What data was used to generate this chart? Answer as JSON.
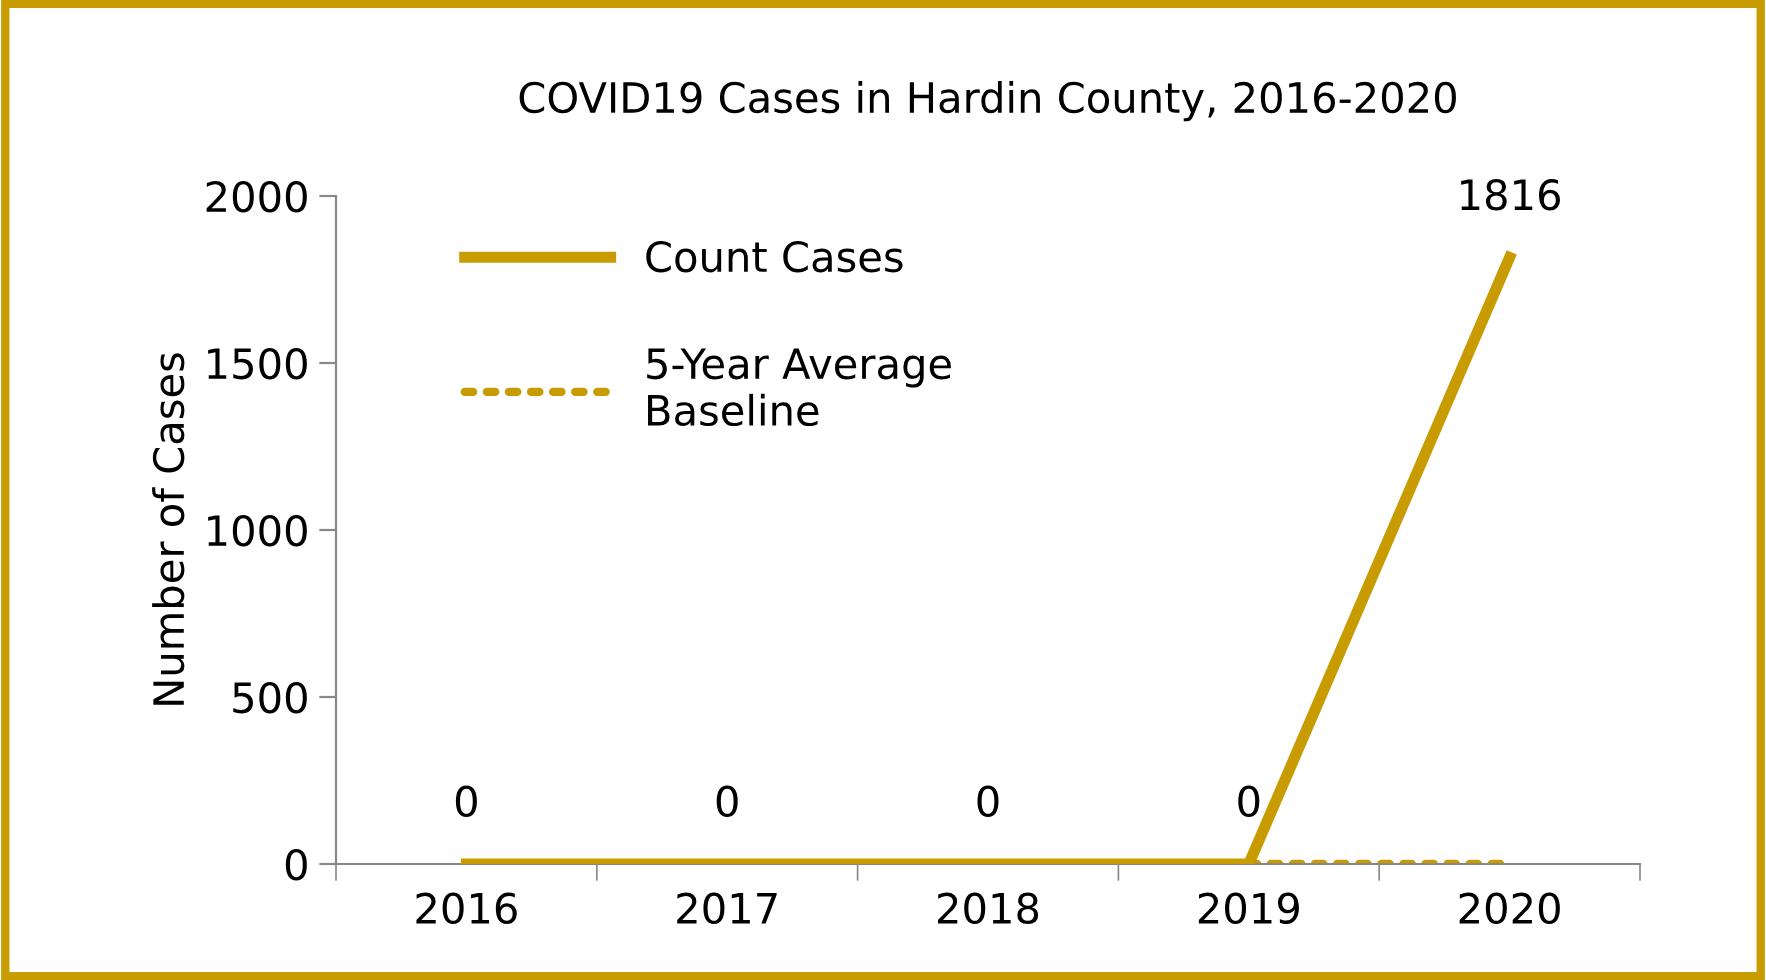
{
  "chart_data": {
    "type": "line",
    "title": "COVID19 Cases in Hardin County, 2016-2020",
    "ylabel": "Number of Cases",
    "categories": [
      "2016",
      "2017",
      "2018",
      "2019",
      "2020"
    ],
    "series": [
      {
        "name": "Count Cases",
        "color": "#c89b00",
        "values": [
          0,
          0,
          0,
          0,
          1816
        ],
        "value_labels": [
          "0",
          "0",
          "0",
          "0",
          "1816"
        ],
        "line_style": "solid"
      },
      {
        "name": "5-Year Average\nBaseline",
        "color": "#c89b00",
        "values": [
          null,
          null,
          null,
          0,
          0
        ],
        "line_style": "dotted"
      }
    ],
    "ylim": [
      0,
      2000
    ],
    "yticks": [
      0,
      500,
      1000,
      1500,
      2000
    ],
    "grid": false,
    "legend": "top left",
    "marker": "none"
  }
}
